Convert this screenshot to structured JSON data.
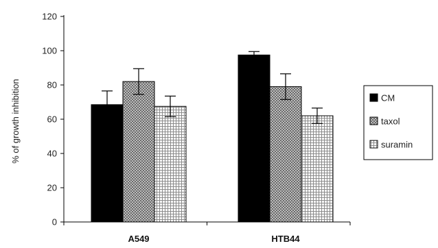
{
  "chart_data": {
    "type": "bar",
    "title": "",
    "xlabel": "",
    "ylabel": "% of growth inhibition",
    "ylim": [
      0,
      120
    ],
    "yticks": [
      0,
      20,
      40,
      60,
      80,
      100,
      120
    ],
    "grid": false,
    "legend_position": "right",
    "categories": [
      "A549",
      "HTB44"
    ],
    "series": [
      {
        "name": "CM",
        "values": [
          68.5,
          97.5
        ],
        "errors": [
          8,
          2
        ],
        "pattern": "solid-black"
      },
      {
        "name": "taxol",
        "values": [
          82,
          79
        ],
        "errors": [
          7.5,
          7.5
        ],
        "pattern": "dense-check"
      },
      {
        "name": "suramin",
        "values": [
          67.5,
          62
        ],
        "errors": [
          6,
          4.5
        ],
        "pattern": "grid"
      }
    ]
  }
}
